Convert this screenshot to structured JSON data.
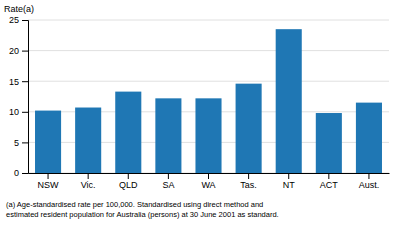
{
  "chart_data": {
    "type": "bar",
    "categories": [
      "NSW",
      "Vic.",
      "QLD",
      "SA",
      "WA",
      "Tas.",
      "NT",
      "ACT",
      "Aust."
    ],
    "values": [
      10.2,
      10.7,
      13.3,
      12.2,
      12.2,
      14.6,
      23.5,
      9.8,
      11.5
    ],
    "ylim": [
      0,
      25
    ],
    "yticks": [
      0,
      5,
      10,
      15,
      20,
      25
    ],
    "grid": true,
    "ylabel": "Rate(a)",
    "annotations": [
      "(a) Age-standardised rate per 100,000. Standardised using direct method and",
      "estimated resident population for Australia (persons) at 30 June 2001 as standard."
    ]
  }
}
